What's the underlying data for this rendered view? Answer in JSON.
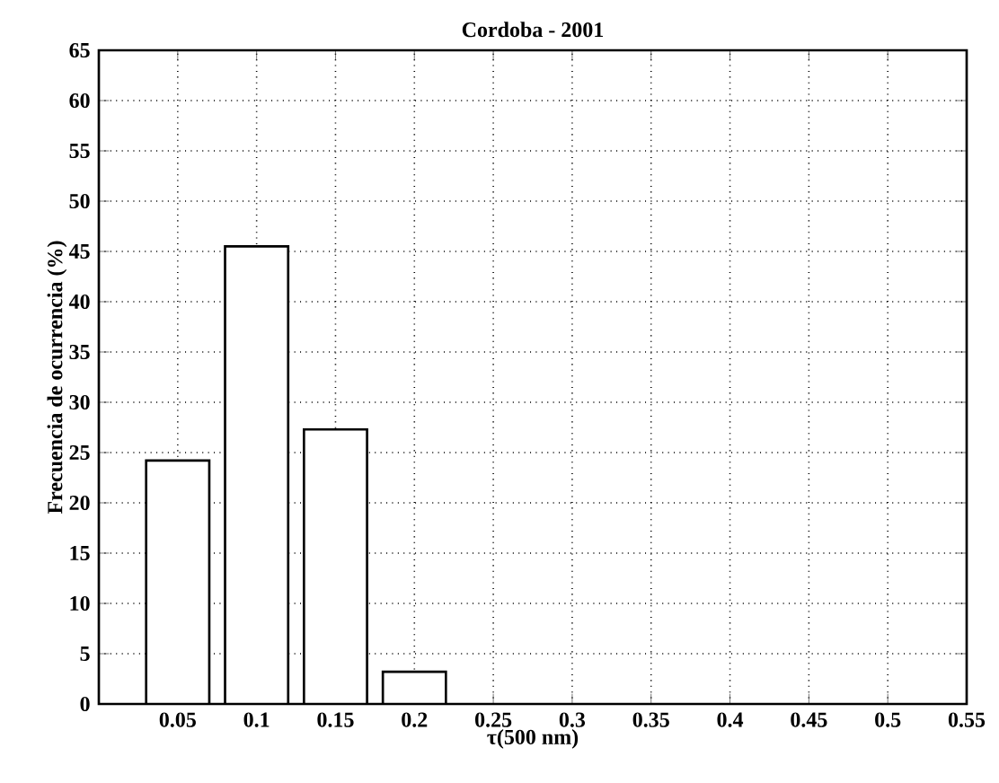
{
  "chart_data": {
    "type": "bar",
    "title": "Cordoba - 2001",
    "xlabel": "τ(500 nm)",
    "ylabel": "Frecuencia de ocurrencia (%)",
    "x": [
      0.05,
      0.1,
      0.15,
      0.2
    ],
    "values": [
      24.2,
      45.5,
      27.3,
      3.2
    ],
    "color": "#ffffff",
    "xlim": [
      0,
      0.55
    ],
    "xticks": [
      0.05,
      0.1,
      0.15,
      0.2,
      0.25,
      0.3,
      0.35,
      0.4,
      0.45,
      0.5,
      0.55
    ],
    "ylim": [
      0,
      65
    ],
    "yticks": [
      0,
      5,
      10,
      15,
      20,
      25,
      30,
      35,
      40,
      45,
      50,
      55,
      60,
      65
    ],
    "grid": true
  }
}
